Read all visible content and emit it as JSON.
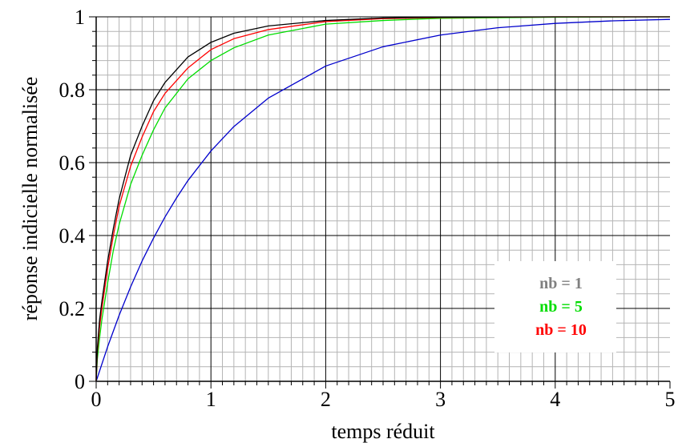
{
  "chart_data": {
    "type": "line",
    "title": "",
    "xlabel": "temps réduit",
    "ylabel": "réponse indicielle normalisée",
    "xlim": [
      0,
      5
    ],
    "ylim": [
      0,
      1
    ],
    "x_ticks": [
      0,
      1,
      2,
      3,
      4,
      5
    ],
    "y_ticks": [
      0,
      0.2,
      0.4,
      0.6,
      0.8,
      1
    ],
    "x_tick_labels": [
      "0",
      "1",
      "2",
      "3",
      "4",
      "5"
    ],
    "y_tick_labels": [
      "0",
      "0.2",
      "0.4",
      "0.6",
      "0.8",
      "1"
    ],
    "grid": true,
    "legend_position": "bottom-right",
    "legend": [
      {
        "label": "nb = 1",
        "color": "#808080"
      },
      {
        "label": "nb = 5",
        "color": "#00dd00"
      },
      {
        "label": "nb = 10",
        "color": "#ff0000"
      }
    ],
    "series": [
      {
        "color": "#0000cc",
        "x": [
          0,
          0.1,
          0.2,
          0.3,
          0.4,
          0.5,
          0.6,
          0.7,
          0.8,
          1.0,
          1.2,
          1.5,
          2.0,
          2.5,
          3.0,
          3.5,
          4.0,
          4.5,
          5.0
        ],
        "values": [
          0,
          0.095,
          0.181,
          0.259,
          0.33,
          0.393,
          0.451,
          0.503,
          0.551,
          0.632,
          0.699,
          0.777,
          0.865,
          0.918,
          0.95,
          0.97,
          0.982,
          0.989,
          0.993
        ]
      },
      {
        "color": "#00dd00",
        "x": [
          0,
          0.01,
          0.03,
          0.05,
          0.1,
          0.15,
          0.2,
          0.3,
          0.4,
          0.5,
          0.6,
          0.8,
          1.0,
          1.2,
          1.5,
          2.0,
          2.5,
          3.0,
          4.0,
          5.0
        ],
        "values": [
          0,
          0.06,
          0.12,
          0.17,
          0.27,
          0.36,
          0.43,
          0.54,
          0.62,
          0.69,
          0.75,
          0.83,
          0.88,
          0.915,
          0.95,
          0.98,
          0.99,
          0.996,
          0.999,
          1.0
        ]
      },
      {
        "color": "#ff0000",
        "x": [
          0,
          0.01,
          0.03,
          0.05,
          0.1,
          0.15,
          0.2,
          0.3,
          0.4,
          0.5,
          0.6,
          0.8,
          1.0,
          1.2,
          1.5,
          2.0,
          2.5,
          3.0,
          4.0,
          5.0
        ],
        "values": [
          0,
          0.08,
          0.15,
          0.2,
          0.31,
          0.4,
          0.48,
          0.59,
          0.67,
          0.74,
          0.79,
          0.86,
          0.91,
          0.94,
          0.965,
          0.987,
          0.995,
          0.998,
          1.0,
          1.0
        ]
      },
      {
        "color": "#000000",
        "x": [
          0,
          0.01,
          0.03,
          0.05,
          0.1,
          0.15,
          0.2,
          0.3,
          0.4,
          0.5,
          0.6,
          0.8,
          1.0,
          1.2,
          1.5,
          2.0,
          2.5,
          3.0,
          4.0,
          5.0
        ],
        "values": [
          0,
          0.09,
          0.17,
          0.22,
          0.33,
          0.42,
          0.5,
          0.62,
          0.7,
          0.77,
          0.82,
          0.89,
          0.93,
          0.955,
          0.975,
          0.99,
          0.997,
          0.999,
          1.0,
          1.0
        ]
      }
    ]
  }
}
